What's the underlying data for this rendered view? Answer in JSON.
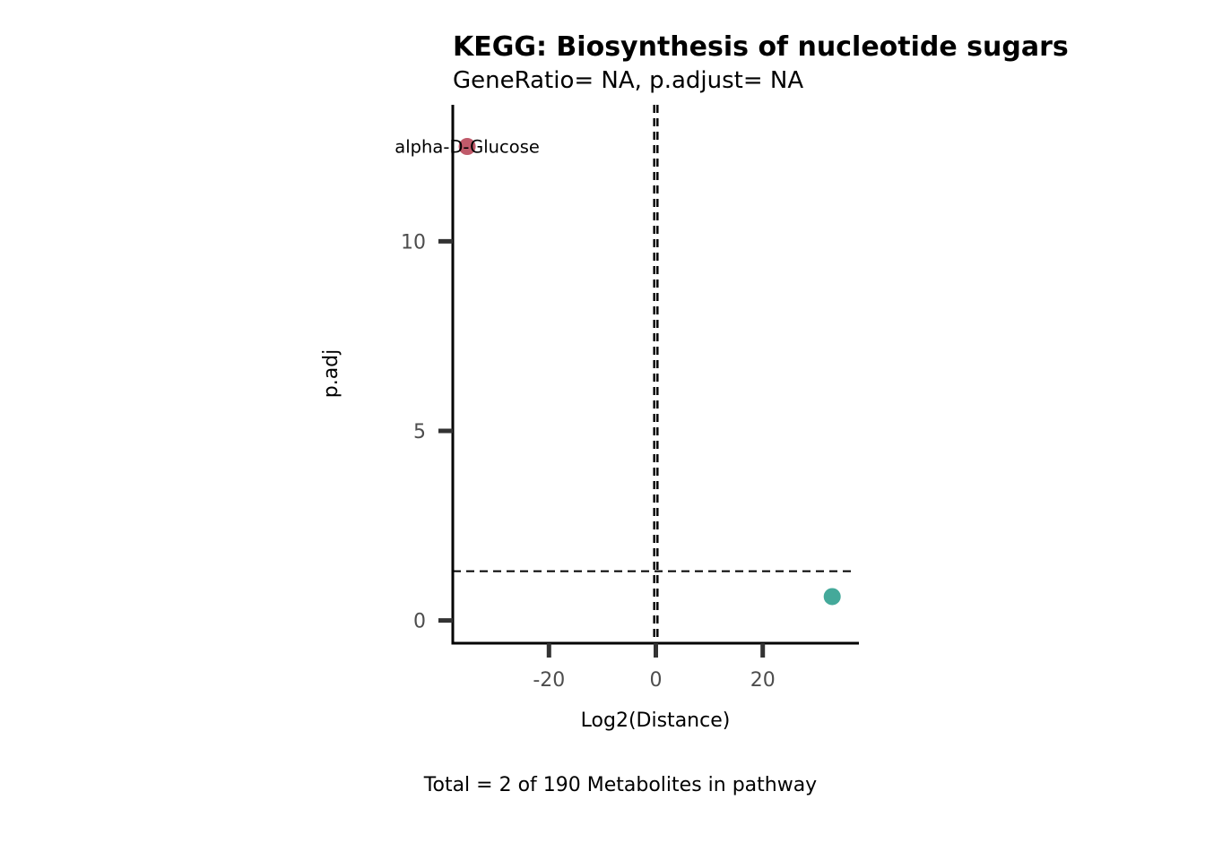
{
  "chart_data": {
    "type": "scatter",
    "title": "KEGG: Biosynthesis of nucleotide sugars",
    "subtitle": "GeneRatio= NA, p.adjust= NA",
    "xlabel": "Log2(Distance)",
    "ylabel": "p.adj",
    "caption": "Total = 2 of 190 Metabolites in pathway",
    "xlim": [
      -38,
      38
    ],
    "ylim": [
      -0.6,
      13.6
    ],
    "xticks": [
      -20,
      0,
      20
    ],
    "yticks": [
      0,
      5,
      10
    ],
    "grid": false,
    "legend": "none",
    "thresholds": {
      "y": 1.3,
      "x": [
        -0.3,
        0.3
      ]
    },
    "points": [
      {
        "x": -35.3,
        "y": 12.5,
        "label": "alpha-D-Glucose",
        "color": "#C05A6A"
      },
      {
        "x": 33.0,
        "y": 0.63,
        "label": "",
        "color": "#44A99A"
      }
    ]
  }
}
